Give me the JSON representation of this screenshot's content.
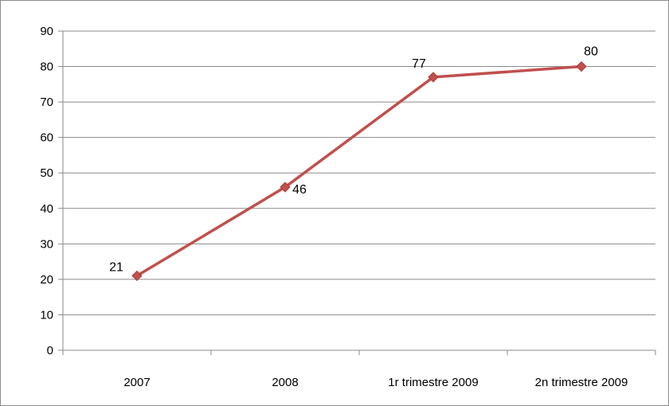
{
  "chart_data": {
    "type": "line",
    "categories": [
      "2007",
      "2008",
      "1r trimestre 2009",
      "2n trimestre 2009"
    ],
    "series": [
      {
        "values": [
          21,
          46,
          77,
          80
        ],
        "color": "#C0504D",
        "marker": "diamond",
        "data_labels": [
          "21",
          "46",
          "77",
          "80"
        ]
      }
    ],
    "ylim": [
      0,
      90
    ],
    "yticks": [
      0,
      10,
      20,
      30,
      40,
      50,
      60,
      70,
      80,
      90
    ],
    "grid": "horizontal",
    "title": "",
    "xlabel": "",
    "ylabel": "",
    "legend": "none"
  }
}
